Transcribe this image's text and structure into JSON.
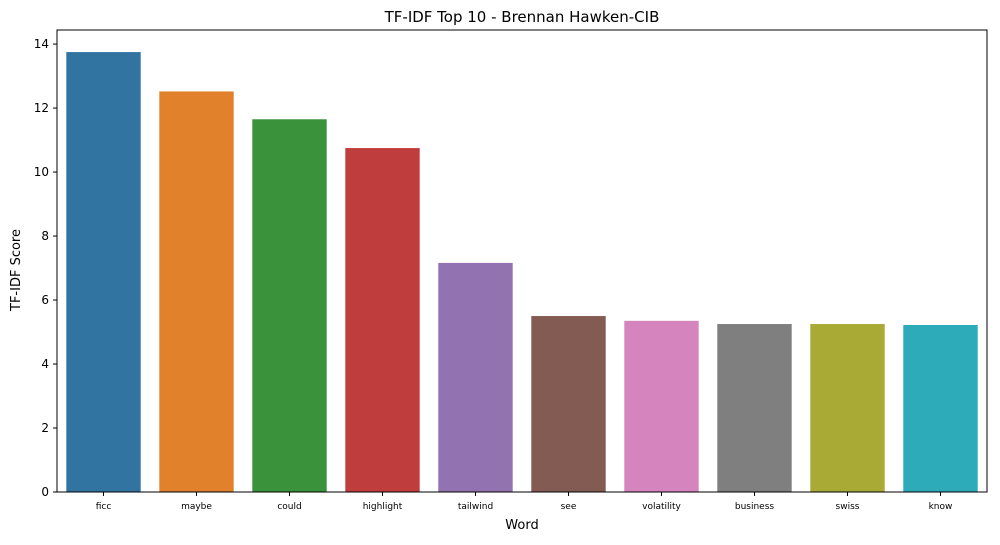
{
  "chart_data": {
    "type": "bar",
    "title": "TF-IDF Top 10 - Brennan Hawken-CIB",
    "xlabel": "Word",
    "ylabel": "TF-IDF Score",
    "categories": [
      "ficc",
      "maybe",
      "could",
      "highlight",
      "tailwind",
      "see",
      "volatility",
      "business",
      "swiss",
      "know"
    ],
    "values": [
      13.75,
      12.52,
      11.65,
      10.75,
      7.16,
      5.5,
      5.35,
      5.25,
      5.25,
      5.22
    ],
    "colors": [
      "#3274a1",
      "#e1812c",
      "#3a923a",
      "#c03d3e",
      "#9372b2",
      "#845b53",
      "#d684bd",
      "#7f7f7f",
      "#a9aa35",
      "#2eabb8"
    ],
    "yticks": [
      0,
      2,
      4,
      6,
      8,
      10,
      12,
      14
    ],
    "ylim": [
      0,
      14.44
    ],
    "grid": false,
    "legend": "none"
  }
}
